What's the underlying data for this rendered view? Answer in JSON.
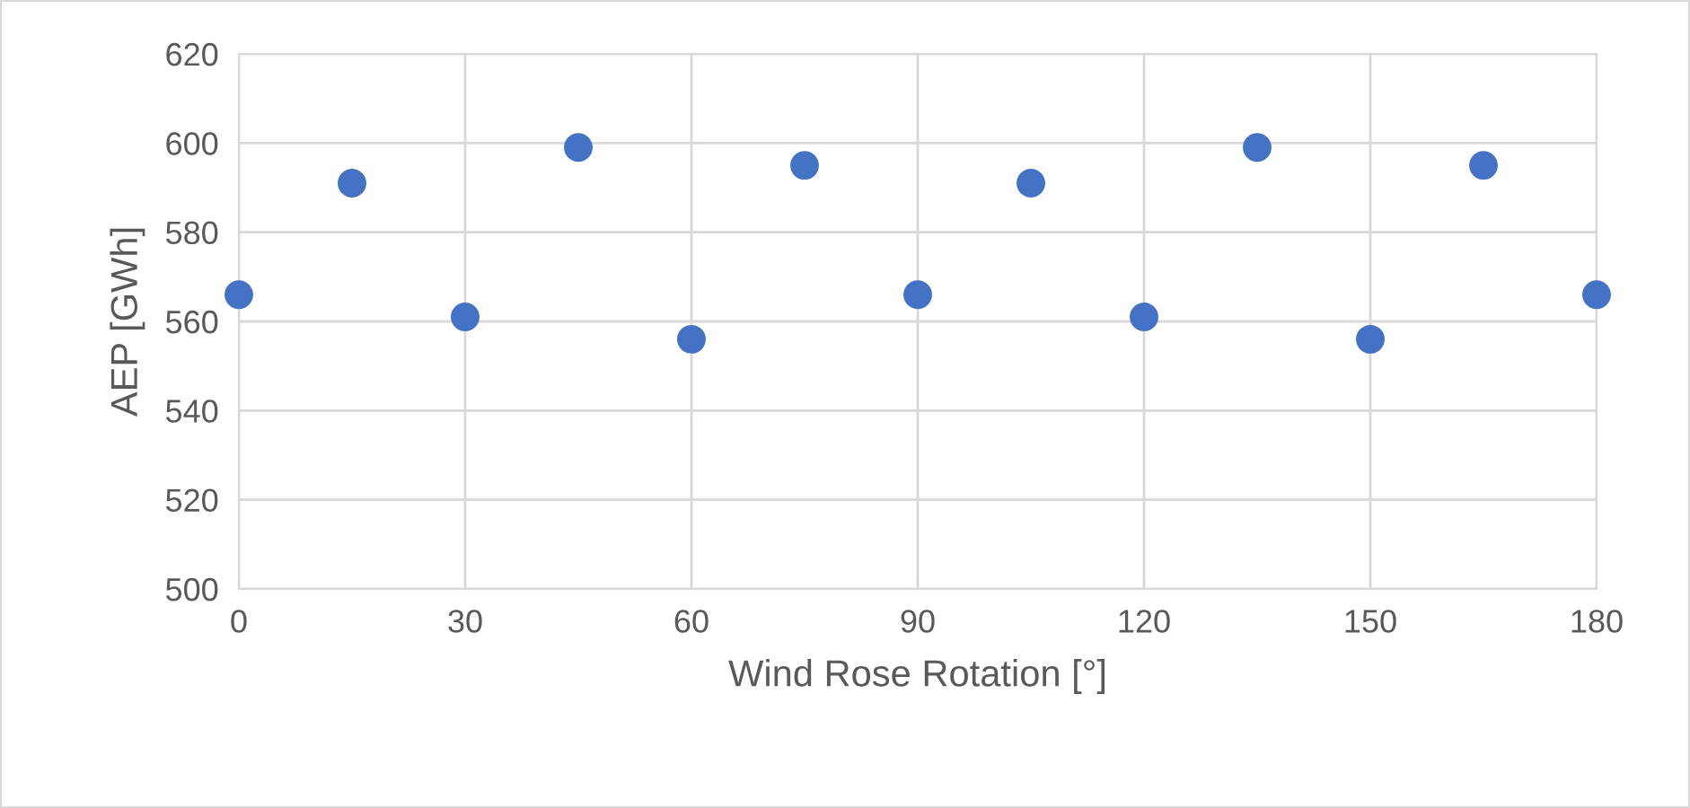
{
  "chart_data": {
    "type": "scatter",
    "xlabel": "Wind Rose Rotation [°]",
    "ylabel": "AEP [GWh]",
    "x": [
      0,
      15,
      30,
      45,
      60,
      75,
      90,
      105,
      120,
      135,
      150,
      165,
      180
    ],
    "series": [
      {
        "color": "#4472c4",
        "values": [
          566,
          591,
          561,
          599,
          556,
          595,
          566,
          591,
          561,
          599,
          556,
          595,
          566
        ]
      }
    ],
    "xlim": [
      0,
      180
    ],
    "xticks": [
      0,
      30,
      60,
      90,
      120,
      150,
      180
    ],
    "ylim": [
      500,
      620
    ],
    "yticks": [
      500,
      520,
      540,
      560,
      580,
      600,
      620
    ],
    "grid": true,
    "marker": "circle"
  }
}
